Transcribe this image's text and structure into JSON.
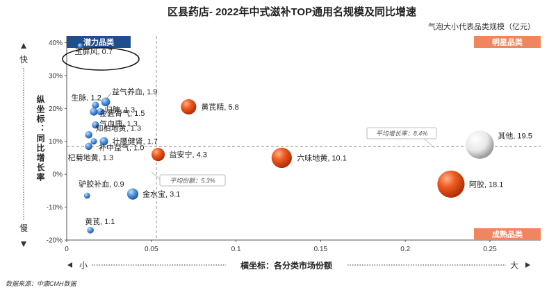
{
  "header": {
    "title": "区县药店- 2022年中式滋补TOP通用名规模及同比增速",
    "bubble_note": "气泡大小代表品类规模（亿元）",
    "source": "数据来源：中康CMH数据"
  },
  "axes": {
    "y_title": "纵坐标：同比增长率",
    "y_fast": "快",
    "y_slow": "慢",
    "x_title": "横坐标：各分类市场份额",
    "x_small": "小",
    "x_large": "大"
  },
  "quadrants": {
    "top_left": "潜力品类",
    "top_right": "明星品类",
    "bottom_right": "成熟品类"
  },
  "averages": {
    "growth_label": "平均增长率：8.4%",
    "share_label": "平均份额：5.3%"
  },
  "colors": {
    "blue_bubble": "#3d7fcf",
    "orange_bubble": "#e8501a",
    "white_bubble": "#f0f0f0",
    "quadrant_blue": "#1f4e8c",
    "quadrant_orange": "#f08660"
  },
  "chart_data": {
    "type": "scatter",
    "title": "区县药店- 2022年中式滋补TOP通用名规模及同比增速",
    "xlabel": "横坐标：各分类市场份额",
    "ylabel": "纵坐标：同比增长率",
    "xlim": [
      0,
      0.28
    ],
    "ylim": [
      -0.2,
      0.42
    ],
    "x_ticks": [
      0,
      0.05,
      0.1,
      0.15,
      0.2,
      0.25
    ],
    "x_tick_labels": [
      "0",
      "0.05",
      "0.1",
      "0.15",
      "0.2",
      "0.25"
    ],
    "y_ticks": [
      -0.2,
      -0.1,
      0,
      0.1,
      0.2,
      0.3,
      0.4
    ],
    "y_tick_labels": [
      "-20%",
      "-10%",
      "0%",
      "10%",
      "20%",
      "30%",
      "40%"
    ],
    "avg_share": 0.053,
    "avg_growth": 0.084,
    "points": [
      {
        "label": "玉屏风, 0.7",
        "x": 0.008,
        "y": 0.39,
        "size": 0.7,
        "color": "blue"
      },
      {
        "label": "生脉, 1.2",
        "x": 0.017,
        "y": 0.21,
        "size": 1.2,
        "color": "blue"
      },
      {
        "label": "益气养血, 1.9",
        "x": 0.023,
        "y": 0.22,
        "size": 1.9,
        "color": "blue"
      },
      {
        "label": "归脾, 1.3",
        "x": 0.02,
        "y": 0.19,
        "size": 1.3,
        "color": "blue"
      },
      {
        "label": "金匮肾气, 1.5",
        "x": 0.016,
        "y": 0.19,
        "size": 1.5,
        "color": "blue"
      },
      {
        "label": "气血康, 1.3",
        "x": 0.017,
        "y": 0.15,
        "size": 1.3,
        "color": "blue"
      },
      {
        "label": "知柏地黄, 1.3",
        "x": 0.013,
        "y": 0.12,
        "size": 1.3,
        "color": "blue"
      },
      {
        "label": "壮腰健肾, 1.7",
        "x": 0.022,
        "y": 0.1,
        "size": 1.7,
        "color": "blue"
      },
      {
        "label": "补中益气, 1.0",
        "x": 0.016,
        "y": 0.1,
        "size": 1.0,
        "color": "blue"
      },
      {
        "label": "杞菊地黄, 1.3",
        "x": 0.013,
        "y": 0.085,
        "size": 1.3,
        "color": "blue"
      },
      {
        "label": "黄芪精, 5.8",
        "x": 0.072,
        "y": 0.205,
        "size": 5.8,
        "color": "orange"
      },
      {
        "label": "益安宁, 4.3",
        "x": 0.054,
        "y": 0.06,
        "size": 4.3,
        "color": "orange"
      },
      {
        "label": "六味地黄, 10.1",
        "x": 0.127,
        "y": 0.05,
        "size": 10.1,
        "color": "orange"
      },
      {
        "label": "阿胶, 18.1",
        "x": 0.227,
        "y": -0.03,
        "size": 18.1,
        "color": "orange"
      },
      {
        "label": "其他, 19.5",
        "x": 0.244,
        "y": 0.09,
        "size": 19.5,
        "color": "white"
      },
      {
        "label": "驴胶补血, 0.9",
        "x": 0.012,
        "y": -0.065,
        "size": 0.9,
        "color": "blue"
      },
      {
        "label": "金水宝, 3.1",
        "x": 0.039,
        "y": -0.06,
        "size": 3.1,
        "color": "blue"
      },
      {
        "label": "黄芪, 1.1",
        "x": 0.014,
        "y": -0.17,
        "size": 1.1,
        "color": "blue"
      }
    ]
  }
}
